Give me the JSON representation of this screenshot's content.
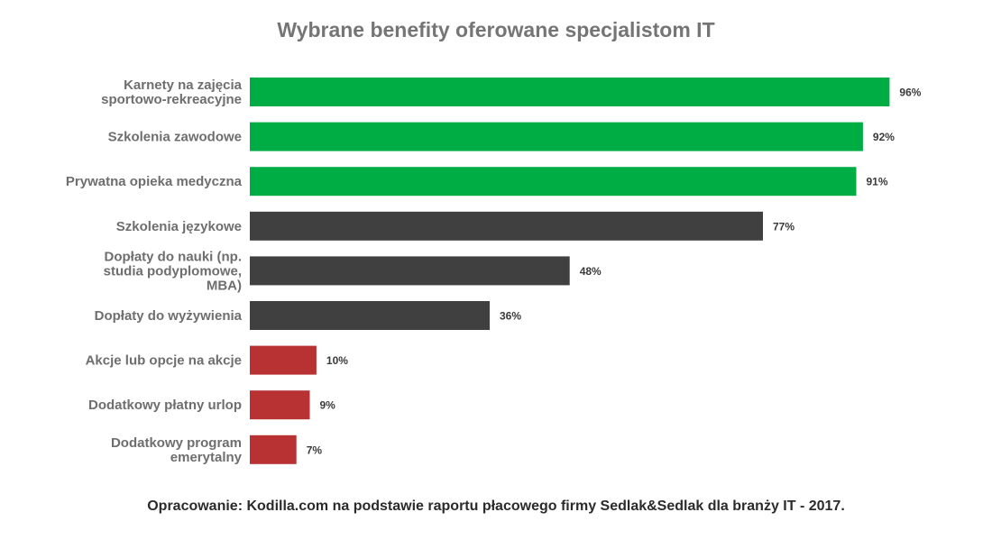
{
  "chart_data": {
    "type": "bar",
    "orientation": "horizontal",
    "title": "Wybrane benefity oferowane specjalistom IT",
    "xlim": [
      0,
      100
    ],
    "grid": false,
    "legend": "none",
    "value_suffix": "%",
    "categories": [
      "Karnety na zajęcia sportowo-rekreacyjne",
      "Szkolenia zawodowe",
      "Prywatna opieka medyczna",
      "Szkolenia językowe",
      "Dopłaty do nauki (np. studia podyplomowe, MBA)",
      "Dopłaty do wyżywienia",
      "Akcje lub opcje na akcje",
      "Dodatkowy płatny urlop",
      "Dodatkowy program emerytalny"
    ],
    "category_lines": [
      [
        "Karnety na zajęcia",
        "sportowo-rekreacyjne"
      ],
      [
        "Szkolenia zawodowe"
      ],
      [
        "Prywatna opieka medyczna"
      ],
      [
        "Szkolenia językowe"
      ],
      [
        "Dopłaty do nauki (np.",
        "studia podyplomowe,",
        "MBA)"
      ],
      [
        "Dopłaty do wyżywienia"
      ],
      [
        "Akcje lub opcje na akcje"
      ],
      [
        "Dodatkowy płatny urlop"
      ],
      [
        "Dodatkowy program",
        "emerytalny"
      ]
    ],
    "values": [
      96,
      92,
      91,
      77,
      48,
      36,
      10,
      9,
      7
    ],
    "value_labels": [
      "96%",
      "92%",
      "91%",
      "77%",
      "48%",
      "36%",
      "10%",
      "9%",
      "7%"
    ],
    "bar_colors": [
      "#00ad45",
      "#00ad45",
      "#00ad45",
      "#404040",
      "#404040",
      "#404040",
      "#b83233",
      "#b83233",
      "#b83233"
    ]
  },
  "footnote": "Opracowanie: Kodilla.com na podstawie raportu płacowego firmy Sedlak&Sedlak dla branży IT - 2017."
}
